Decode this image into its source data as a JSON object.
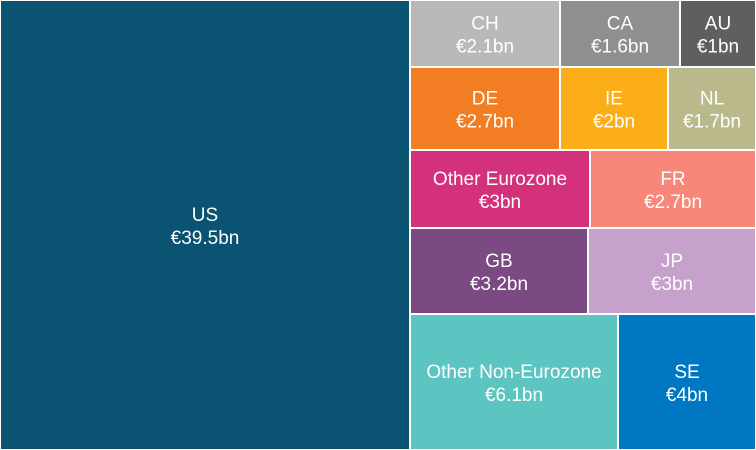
{
  "chart_data": {
    "type": "treemap",
    "title": "",
    "unit_prefix": "€",
    "unit_suffix": "bn",
    "items": [
      {
        "name": "US",
        "value": 39.5,
        "label": "€39.5bn",
        "color": "#0b5372"
      },
      {
        "name": "CH",
        "value": 2.1,
        "label": "€2.1bn",
        "color": "#b9b9b9"
      },
      {
        "name": "CA",
        "value": 1.6,
        "label": "€1.6bn",
        "color": "#8f8f8f"
      },
      {
        "name": "AU",
        "value": 1,
        "label": "€1bn",
        "color": "#5f5f5f"
      },
      {
        "name": "DE",
        "value": 2.7,
        "label": "€2.7bn",
        "color": "#f37d22"
      },
      {
        "name": "IE",
        "value": 2,
        "label": "€2bn",
        "color": "#fbae17"
      },
      {
        "name": "NL",
        "value": 1.7,
        "label": "€1.7bn",
        "color": "#b9b98c"
      },
      {
        "name": "Other Eurozone",
        "value": 3,
        "label": "€3bn",
        "color": "#d4317c"
      },
      {
        "name": "FR",
        "value": 2.7,
        "label": "€2.7bn",
        "color": "#f8877a"
      },
      {
        "name": "GB",
        "value": 3.2,
        "label": "€3.2bn",
        "color": "#7b4a82"
      },
      {
        "name": "JP",
        "value": 3,
        "label": "€3bn",
        "color": "#c6a1cc"
      },
      {
        "name": "Other Non-Eurozone",
        "value": 6.1,
        "label": "€6.1bn",
        "color": "#5dc5c1"
      },
      {
        "name": "SE",
        "value": 4,
        "label": "€4bn",
        "color": "#0077c2"
      }
    ]
  }
}
